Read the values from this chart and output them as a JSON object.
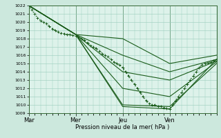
{
  "title": "",
  "xlabel": "Pression niveau de la mer( hPa )",
  "ylabel": "",
  "bg_color": "#cce8dd",
  "plot_bg_color": "#ddf2ea",
  "grid_color": "#99ccbb",
  "line_color": "#1a5c1a",
  "ylim": [
    1009,
    1022
  ],
  "yticks": [
    1009,
    1010,
    1011,
    1012,
    1013,
    1014,
    1015,
    1016,
    1017,
    1018,
    1019,
    1020,
    1021,
    1022
  ],
  "day_labels": [
    "Mar",
    "Mer",
    "Jeu",
    "Ven"
  ],
  "day_positions": [
    0,
    8,
    16,
    24
  ],
  "xlim": [
    0,
    32
  ],
  "lines": [
    {
      "x": [
        0,
        0.5,
        1,
        1.5,
        2,
        2.5,
        3,
        3.5,
        4,
        4.5,
        5,
        5.5,
        6,
        6.5,
        7,
        7.5,
        8,
        8.5,
        9,
        9.5,
        10,
        10.5,
        11,
        11.5,
        12,
        12.5,
        13,
        13.5,
        14,
        14.5,
        15,
        15.5,
        16,
        16.5,
        17,
        17.5,
        18,
        18.5,
        19,
        19.5,
        20,
        20.5,
        21,
        21.5,
        22,
        22.5,
        23,
        23.5,
        24,
        24.5,
        25,
        25.5,
        26,
        26.5,
        27,
        27.5,
        28,
        28.5,
        29,
        29.5,
        30,
        30.5,
        31,
        31.5,
        32
      ],
      "y": [
        1022,
        1021.5,
        1021,
        1020.5,
        1020.2,
        1020,
        1019.8,
        1019.5,
        1019.2,
        1019,
        1018.8,
        1018.7,
        1018.6,
        1018.5,
        1018.5,
        1018.4,
        1018.3,
        1018.2,
        1018,
        1017.8,
        1017.5,
        1017.2,
        1017,
        1016.8,
        1016.5,
        1016.2,
        1016,
        1015.8,
        1015.5,
        1015.2,
        1015,
        1014.8,
        1014.5,
        1014,
        1013.5,
        1013,
        1012.5,
        1012,
        1011.5,
        1011,
        1010.5,
        1010.2,
        1010,
        1010,
        1009.8,
        1009.8,
        1009.7,
        1009.6,
        1009.5,
        1010,
        1010.5,
        1011,
        1011.5,
        1012,
        1012.5,
        1013,
        1013.5,
        1014,
        1014.5,
        1014.8,
        1015,
        1015.1,
        1015.2,
        1015.3,
        1015.5
      ],
      "style": "dotted",
      "lw": 1.0
    },
    {
      "x": [
        0,
        8,
        16,
        24,
        32
      ],
      "y": [
        1022,
        1018.5,
        1018,
        1015,
        1016
      ],
      "style": "solid",
      "lw": 0.8
    },
    {
      "x": [
        0,
        8,
        16,
        24,
        32
      ],
      "y": [
        1022,
        1018.5,
        1016,
        1014,
        1015.5
      ],
      "style": "solid",
      "lw": 0.8
    },
    {
      "x": [
        0,
        8,
        16,
        24,
        32
      ],
      "y": [
        1022,
        1018.5,
        1014,
        1013,
        1015.3
      ],
      "style": "solid",
      "lw": 0.8
    },
    {
      "x": [
        0,
        8,
        16,
        24,
        32
      ],
      "y": [
        1022,
        1018.5,
        1012,
        1011,
        1015.2
      ],
      "style": "solid",
      "lw": 0.8
    },
    {
      "x": [
        0,
        8,
        16,
        24,
        32
      ],
      "y": [
        1022,
        1018.5,
        1010,
        1009.8,
        1015
      ],
      "style": "solid",
      "lw": 0.8
    },
    {
      "x": [
        0,
        8,
        16,
        24,
        32
      ],
      "y": [
        1022,
        1018.5,
        1009.8,
        1009.5,
        1015.5
      ],
      "style": "solid",
      "lw": 0.8
    }
  ],
  "marker": "+",
  "marker_size": 2.5,
  "marker_lw": 0.7
}
